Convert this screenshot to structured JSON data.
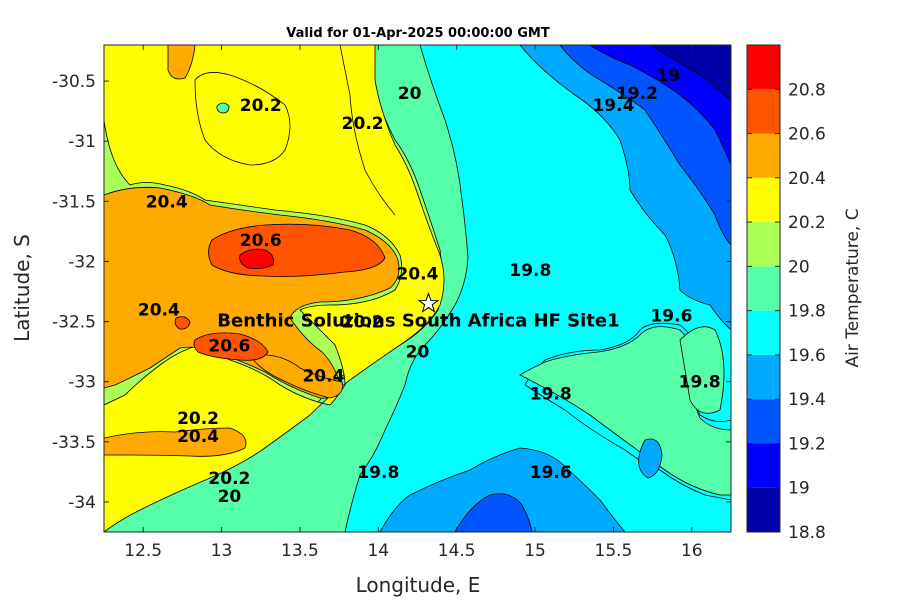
{
  "chart_data": {
    "type": "heatmap",
    "title": "Valid for 01-Apr-2025 00:00:00 GMT",
    "xlabel": "Longitude, E",
    "ylabel": "Latitude, S",
    "colorbar_label": "Air Temperature, C",
    "xlim": [
      12.25,
      16.25
    ],
    "ylim": [
      -34.25,
      -30.2
    ],
    "x_ticks": [
      12.5,
      13,
      13.5,
      14,
      14.5,
      15,
      15.5,
      16
    ],
    "x_tick_labels": [
      "12.5",
      "13",
      "13.5",
      "14",
      "14.5",
      "15",
      "15.5",
      "16"
    ],
    "y_ticks": [
      -30.5,
      -31,
      -31.5,
      -32,
      -32.5,
      -33,
      -33.5,
      -34
    ],
    "y_tick_labels": [
      "-30.5",
      "-31",
      "-31.5",
      "-32",
      "-32.5",
      "-33",
      "-33.5",
      "-34"
    ],
    "levels": [
      18.8,
      19.0,
      19.2,
      19.4,
      19.6,
      19.8,
      20.0,
      20.2,
      20.4,
      20.6,
      20.8,
      21.0
    ],
    "colorbar_ticks": [
      "18.8",
      "19",
      "19.2",
      "19.4",
      "19.6",
      "19.8",
      "20",
      "20.2",
      "20.4",
      "20.6",
      "20.8"
    ],
    "level_colors": [
      "#0000a8",
      "#0000ff",
      "#0055ff",
      "#00aaff",
      "#00ffff",
      "#55ffaa",
      "#aaff55",
      "#ffff00",
      "#ffaa00",
      "#ff5500",
      "#ff0000",
      "#aa0000"
    ],
    "contour_labels": [
      {
        "text": "19",
        "lon": 15.85,
        "lat": -30.45
      },
      {
        "text": "19.2",
        "lon": 15.65,
        "lat": -30.6
      },
      {
        "text": "19.4",
        "lon": 15.5,
        "lat": -30.7
      },
      {
        "text": "20.2",
        "lon": 13.25,
        "lat": -30.7
      },
      {
        "text": "20.2",
        "lon": 13.9,
        "lat": -30.85
      },
      {
        "text": "20",
        "lon": 14.2,
        "lat": -30.6
      },
      {
        "text": "20.4",
        "lon": 12.65,
        "lat": -31.5
      },
      {
        "text": "20.6",
        "lon": 13.25,
        "lat": -31.82
      },
      {
        "text": "20.4",
        "lon": 14.25,
        "lat": -32.1
      },
      {
        "text": "19.8",
        "lon": 14.97,
        "lat": -32.07
      },
      {
        "text": "19.6",
        "lon": 15.87,
        "lat": -32.45
      },
      {
        "text": "20.4",
        "lon": 12.6,
        "lat": -32.4
      },
      {
        "text": "20.2",
        "lon": 13.9,
        "lat": -32.5
      },
      {
        "text": "20",
        "lon": 14.25,
        "lat": -32.75
      },
      {
        "text": "20.6",
        "lon": 13.05,
        "lat": -32.7
      },
      {
        "text": "20.4",
        "lon": 13.65,
        "lat": -32.95
      },
      {
        "text": "19.8",
        "lon": 16.05,
        "lat": -33.0
      },
      {
        "text": "19.8",
        "lon": 15.1,
        "lat": -33.1
      },
      {
        "text": "20.2",
        "lon": 12.85,
        "lat": -33.3
      },
      {
        "text": "20.4",
        "lon": 12.85,
        "lat": -33.45
      },
      {
        "text": "19.6",
        "lon": 15.1,
        "lat": -33.75
      },
      {
        "text": "19.8",
        "lon": 14.0,
        "lat": -33.75
      },
      {
        "text": "20.2",
        "lon": 13.05,
        "lat": -33.8
      },
      {
        "text": "20",
        "lon": 13.05,
        "lat": -33.95
      }
    ],
    "site": {
      "name": "Benthic Solutions South Africa HF Site1",
      "lon": 14.32,
      "lat": -32.35
    }
  }
}
